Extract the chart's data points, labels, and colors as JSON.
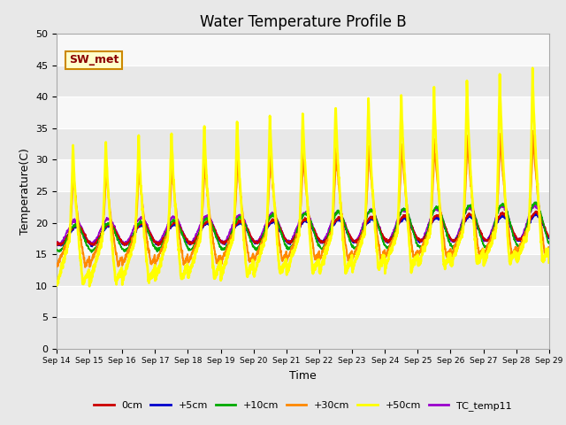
{
  "title": "Water Temperature Profile B",
  "xlabel": "Time",
  "ylabel": "Temperature(C)",
  "ylim": [
    0,
    50
  ],
  "yticks": [
    0,
    5,
    10,
    15,
    20,
    25,
    30,
    35,
    40,
    45,
    50
  ],
  "x_labels": [
    "Sep 14",
    "Sep 15",
    "Sep 16",
    "Sep 17",
    "Sep 18",
    "Sep 19",
    "Sep 20",
    "Sep 21",
    "Sep 22",
    "Sep 23",
    "Sep 24",
    "Sep 25",
    "Sep 26",
    "Sep 27",
    "Sep 28",
    "Sep 29"
  ],
  "series_colors": {
    "0cm": "#cc0000",
    "+5cm": "#0000cc",
    "+10cm": "#00aa00",
    "+30cm": "#ff8800",
    "+50cm": "#ffff00",
    "TC_temp11": "#9900cc"
  },
  "series_lw": {
    "0cm": 1.2,
    "+5cm": 1.2,
    "+10cm": 1.2,
    "+30cm": 1.5,
    "+50cm": 2.0,
    "TC_temp11": 1.2
  },
  "legend_label": "SW_met",
  "bg_color": "#e8e8e8",
  "plot_bg_color": "#f0f0f0",
  "grid_color": "#ffffff",
  "band_colors": [
    "#e8e8e8",
    "#f8f8f8"
  ],
  "title_fontsize": 12,
  "axis_fontsize": 9,
  "tick_fontsize": 8,
  "legend_fontsize": 8
}
